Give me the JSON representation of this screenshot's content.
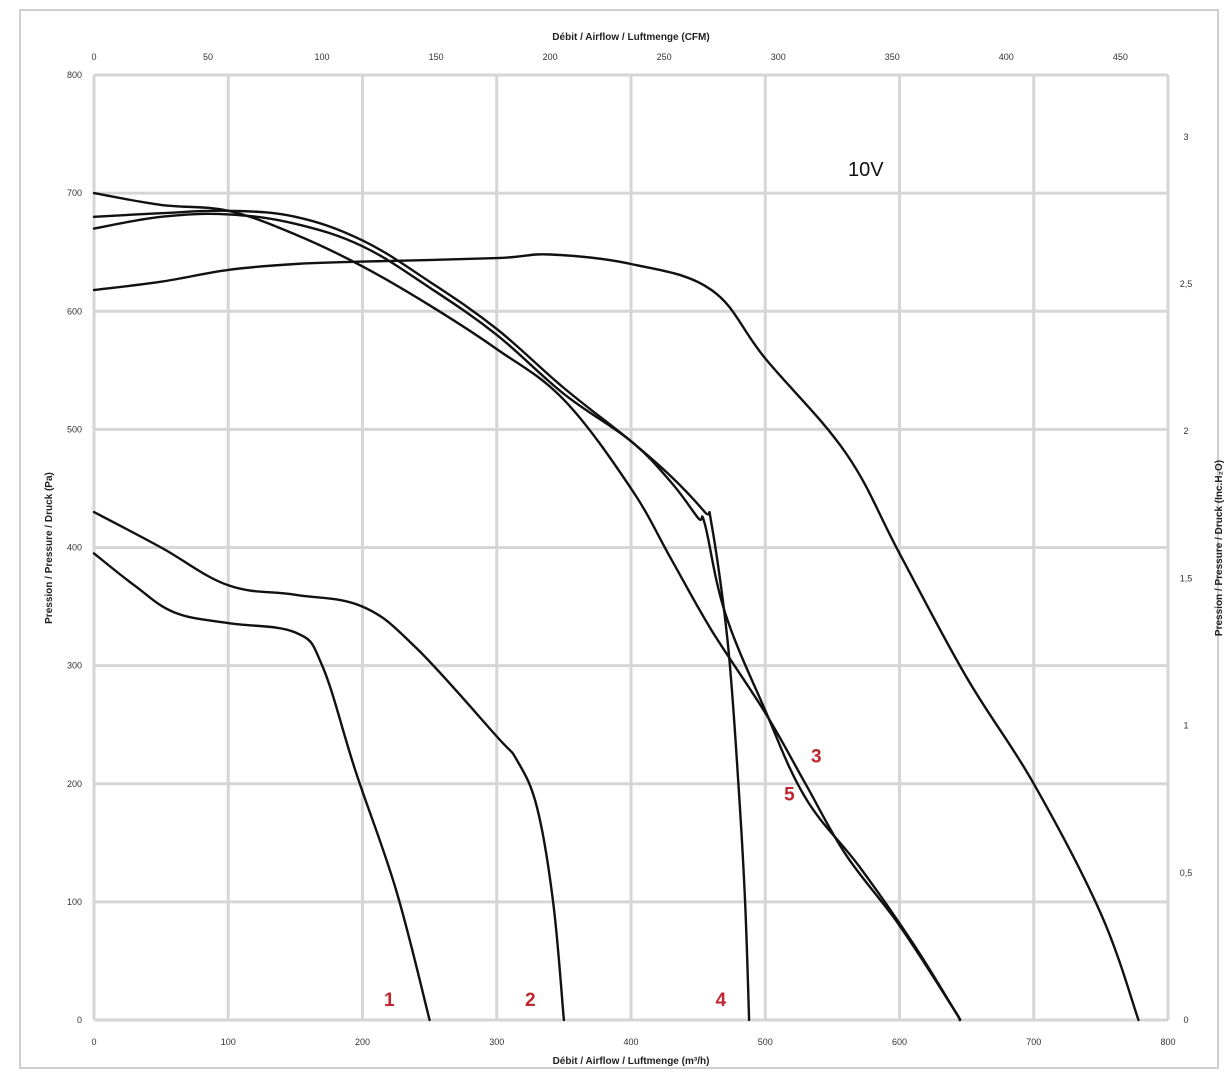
{
  "chart_data": {
    "type": "line",
    "annotation": "10V",
    "x_bottom": {
      "label": "Débit / Airflow / Luftmenge (m³/h)",
      "range": [
        0,
        800
      ],
      "ticks": [
        "0",
        "100",
        "200",
        "300",
        "400",
        "500",
        "600",
        "700",
        "800"
      ]
    },
    "x_top": {
      "label": "Débit / Airflow / Luftmenge (CFM)",
      "range": [
        0,
        470.9
      ],
      "ticks": [
        "0",
        "50",
        "100",
        "150",
        "200",
        "250",
        "300",
        "350",
        "400",
        "450"
      ]
    },
    "y_left": {
      "label": "Pression / Pressure / Druck (Pa)",
      "range": [
        0,
        800
      ],
      "ticks": [
        "0",
        "100",
        "200",
        "300",
        "400",
        "500",
        "600",
        "700",
        "800"
      ]
    },
    "y_right": {
      "label": "Pression / Pressure / Druck (Inc.H₂O)",
      "range": [
        0,
        3.21
      ],
      "ticks": [
        "0",
        "0,5",
        "1",
        "1,5",
        "2",
        "2,5",
        "3"
      ]
    },
    "series": [
      {
        "name": "1",
        "label_x": 220,
        "label_y": 12,
        "points": [
          [
            0,
            395
          ],
          [
            30,
            368
          ],
          [
            60,
            345
          ],
          [
            100,
            336
          ],
          [
            150,
            328
          ],
          [
            170,
            300
          ],
          [
            195,
            210
          ],
          [
            225,
            110
          ],
          [
            250,
            0
          ]
        ]
      },
      {
        "name": "2",
        "label_x": 325,
        "label_y": 12,
        "points": [
          [
            0,
            430
          ],
          [
            50,
            400
          ],
          [
            100,
            368
          ],
          [
            150,
            360
          ],
          [
            200,
            350
          ],
          [
            240,
            315
          ],
          [
            300,
            240
          ],
          [
            315,
            220
          ],
          [
            330,
            180
          ],
          [
            342,
            100
          ],
          [
            350,
            0
          ]
        ]
      },
      {
        "name": "3",
        "label_x": 538,
        "label_y": 218,
        "points": [
          [
            0,
            670
          ],
          [
            50,
            680
          ],
          [
            100,
            682
          ],
          [
            150,
            674
          ],
          [
            200,
            655
          ],
          [
            250,
            620
          ],
          [
            300,
            580
          ],
          [
            350,
            530
          ],
          [
            400,
            490
          ],
          [
            430,
            455
          ],
          [
            450,
            425
          ],
          [
            455,
            420
          ],
          [
            470,
            345
          ],
          [
            500,
            262
          ],
          [
            530,
            188
          ],
          [
            570,
            130
          ],
          [
            610,
            65
          ],
          [
            640,
            10
          ],
          [
            645,
            0
          ]
        ]
      },
      {
        "name": "4",
        "label_x": 467,
        "label_y": 12,
        "points": [
          [
            0,
            680
          ],
          [
            50,
            683
          ],
          [
            100,
            685
          ],
          [
            150,
            680
          ],
          [
            200,
            660
          ],
          [
            250,
            625
          ],
          [
            300,
            585
          ],
          [
            350,
            535
          ],
          [
            400,
            490
          ],
          [
            430,
            460
          ],
          [
            455,
            430
          ],
          [
            460,
            420
          ],
          [
            472,
            320
          ],
          [
            480,
            200
          ],
          [
            485,
            100
          ],
          [
            488,
            0
          ]
        ]
      },
      {
        "name": "5",
        "label_x": 518,
        "label_y": 186,
        "points": [
          [
            0,
            700
          ],
          [
            50,
            690
          ],
          [
            100,
            685
          ],
          [
            150,
            665
          ],
          [
            200,
            638
          ],
          [
            250,
            605
          ],
          [
            300,
            568
          ],
          [
            350,
            525
          ],
          [
            400,
            450
          ],
          [
            430,
            390
          ],
          [
            460,
            330
          ],
          [
            500,
            260
          ],
          [
            530,
            200
          ],
          [
            560,
            140
          ],
          [
            600,
            80
          ],
          [
            640,
            10
          ],
          [
            645,
            0
          ]
        ]
      },
      {
        "name": "",
        "points": [
          [
            0,
            618
          ],
          [
            50,
            625
          ],
          [
            100,
            635
          ],
          [
            150,
            640
          ],
          [
            200,
            642
          ],
          [
            300,
            645
          ],
          [
            340,
            648
          ],
          [
            400,
            640
          ],
          [
            460,
            618
          ],
          [
            500,
            560
          ],
          [
            560,
            480
          ],
          [
            600,
            395
          ],
          [
            650,
            290
          ],
          [
            700,
            200
          ],
          [
            750,
            90
          ],
          [
            778,
            0
          ]
        ]
      }
    ]
  }
}
